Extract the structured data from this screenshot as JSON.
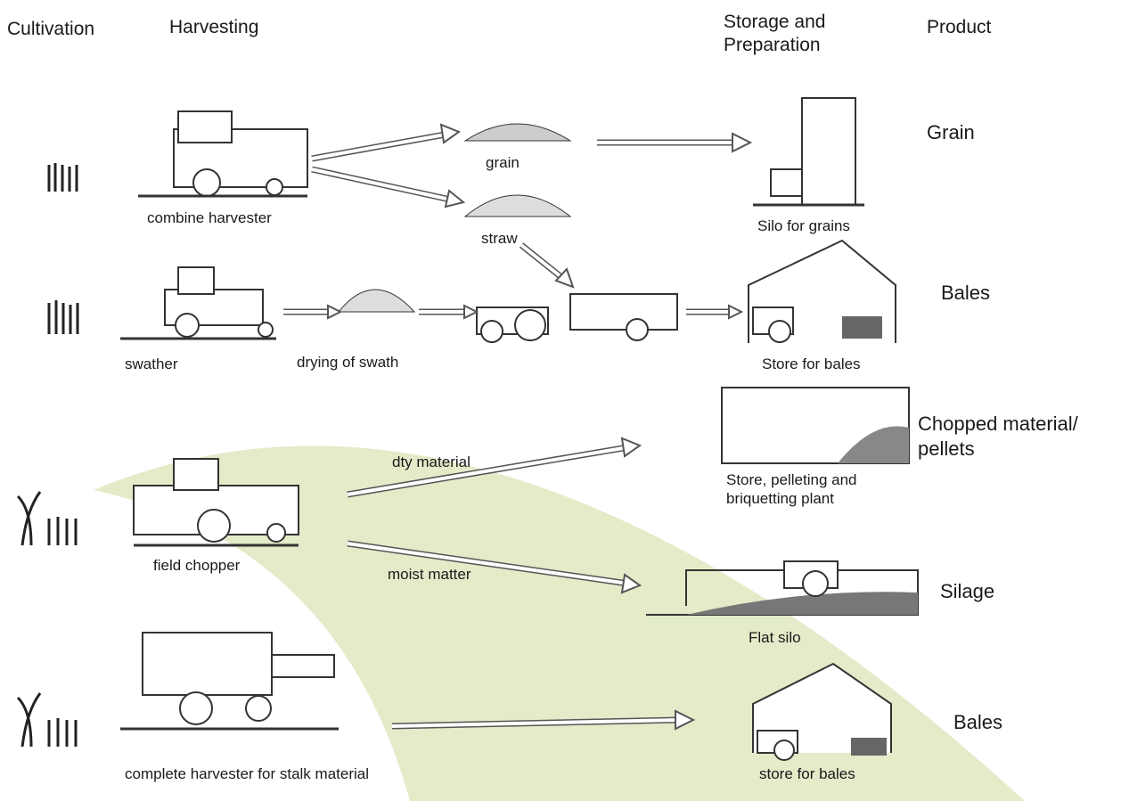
{
  "headers": [
    "Cultivation",
    "Harvesting",
    "Storage and Preparation",
    "Product"
  ],
  "harvesters": [
    "combine harvester",
    "swather",
    "field chopper",
    "complete harvester for stalk material"
  ],
  "intermediates": [
    "grain",
    "straw",
    "drying of swath"
  ],
  "flow_labels": [
    "dty material",
    "moist matter"
  ],
  "storages": [
    "Silo for grains",
    "Store for bales",
    "Store, pelleting and briquetting plant",
    "Flat silo",
    "store for bales"
  ],
  "products": [
    "Grain",
    "Bales",
    "Chopped material/ pellets",
    "Silage",
    "Bales"
  ]
}
